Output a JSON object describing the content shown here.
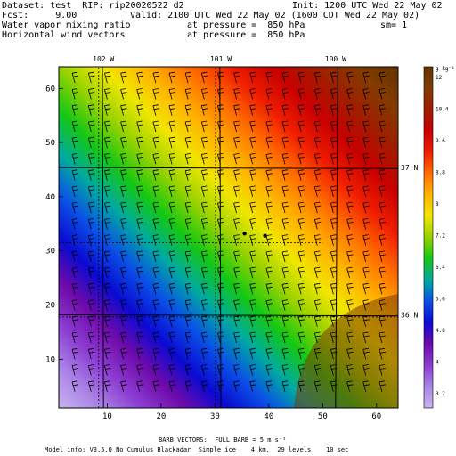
{
  "header": {
    "dataset": "Dataset: test  RIP: rip20020522 d2",
    "init": "Init: 1200 UTC Wed 22 May 02",
    "fcst": "Fcst:     9.00",
    "valid": "Valid: 2100 UTC Wed 22 May 02 (1600 CDT Wed 22 May 02)",
    "field1": "Water vapor mixing ratio",
    "pressure1": "at pressure =  850 hPa",
    "sm": "sm= 1",
    "field2": "Horizontal wind vectors",
    "pressure2": "at pressure =  850 hPa"
  },
  "map": {
    "lon_labels": [
      "102 W",
      "101 W",
      "100 W"
    ],
    "lat_labels": [
      "37 N",
      "36 N"
    ],
    "x_ticks": [
      "10",
      "20",
      "30",
      "40",
      "50",
      "60"
    ],
    "y_ticks": [
      "10",
      "20",
      "30",
      "40",
      "50",
      "60"
    ],
    "x_range": [
      1,
      64
    ],
    "y_range": [
      1,
      64
    ],
    "lon_lines_x": [
      9.3,
      31.1,
      52.4
    ],
    "lat_lines_y": [
      45.4,
      18.2
    ],
    "grid_lines": [
      {
        "name": "lon-102",
        "points": [
          [
            9.3,
            1
          ],
          [
            9.1,
            64
          ]
        ]
      },
      {
        "name": "lon-101",
        "points": [
          [
            31.1,
            1
          ],
          [
            30.9,
            64
          ]
        ]
      },
      {
        "name": "lon-100",
        "points": [
          [
            52.4,
            1
          ],
          [
            52.8,
            64
          ]
        ]
      },
      {
        "name": "lat-37",
        "points": [
          [
            1,
            45.4
          ],
          [
            64,
            45.2
          ]
        ]
      },
      {
        "name": "lat-36",
        "points": [
          [
            1,
            18.2
          ],
          [
            64,
            18.0
          ]
        ]
      },
      {
        "name": "county-v1",
        "points": [
          [
            8.4,
            1
          ],
          [
            8.4,
            64
          ]
        ]
      },
      {
        "name": "county-v2",
        "points": [
          [
            30.1,
            1
          ],
          [
            30.1,
            64
          ]
        ]
      },
      {
        "name": "county-h1",
        "points": [
          [
            1,
            31.5
          ],
          [
            50,
            31.5
          ]
        ]
      },
      {
        "name": "county-h2",
        "points": [
          [
            1,
            17.8
          ],
          [
            64,
            17.8
          ]
        ]
      }
    ],
    "station_points": [
      [
        35.5,
        33.2
      ],
      [
        39.3,
        32.8
      ]
    ]
  },
  "colorbar": {
    "units": "g kg⁻¹",
    "labels": [
      "12",
      "10.4",
      "9.6",
      "8.8",
      "8",
      "7.2",
      "6.4",
      "5.6",
      "4.8",
      "4",
      "3.2"
    ],
    "colors": [
      "#c8b4f0",
      "#aa84e6",
      "#8c3cd2",
      "#6e0aaa",
      "#0a0ad2",
      "#0a50e6",
      "#00aaa0",
      "#14c814",
      "#96d200",
      "#f0e600",
      "#ffb400",
      "#ff6e00",
      "#f01e00",
      "#c80000",
      "#a01e00",
      "#823c00",
      "#643200"
    ]
  },
  "footer": {
    "barb_note": "BARB VECTORS:  FULL BARB = 5 m s⁻¹",
    "model_info": "Model info: V3.5.0 No Cumulus Blackadar  Simple ice    4 km,  29 levels,   10 sec"
  }
}
